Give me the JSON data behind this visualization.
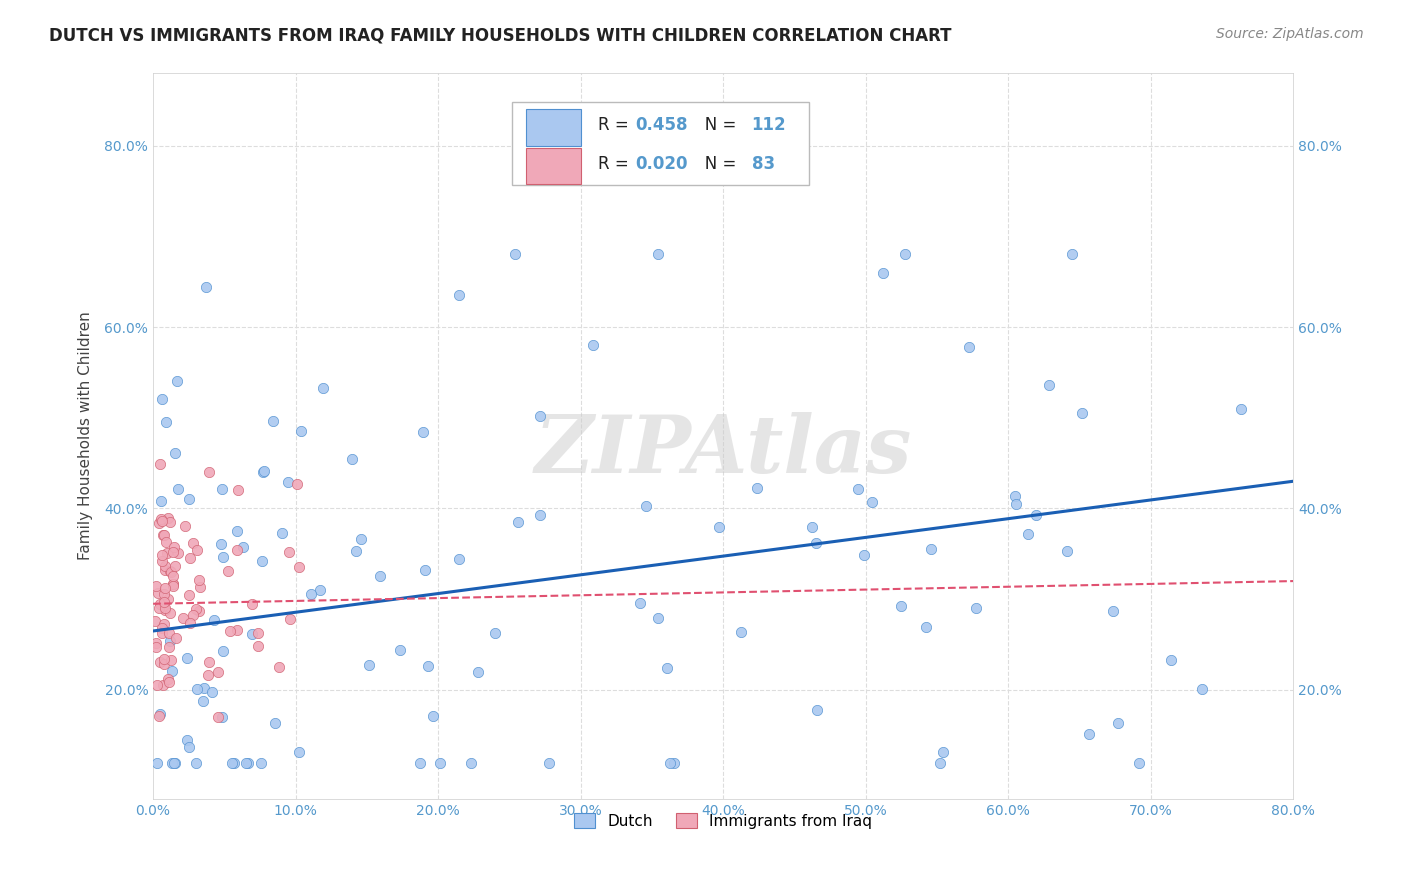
{
  "title": "DUTCH VS IMMIGRANTS FROM IRAQ FAMILY HOUSEHOLDS WITH CHILDREN CORRELATION CHART",
  "source": "Source: ZipAtlas.com",
  "ylabel": "Family Households with Children",
  "xlim": [
    0.0,
    0.8
  ],
  "ylim": [
    0.08,
    0.88
  ],
  "watermark": "ZIPAtlas",
  "dutch_color": "#aac8f0",
  "dutch_edge_color": "#5090d0",
  "iraq_color": "#f0a8b8",
  "iraq_edge_color": "#d06070",
  "dutch_line_color": "#1a5fb4",
  "iraq_line_color": "#e05070",
  "background_color": "#ffffff",
  "grid_color": "#dddddd",
  "tick_color": "#5599cc",
  "title_color": "#222222",
  "ylabel_color": "#444444",
  "legend_R1": "0.458",
  "legend_N1": "112",
  "legend_R2": "0.020",
  "legend_N2": "83",
  "dutch_seed": 42,
  "iraq_seed": 7
}
